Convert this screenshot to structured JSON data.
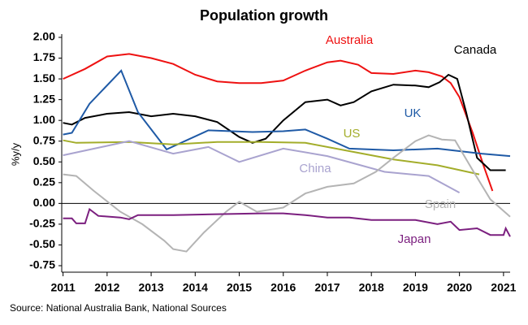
{
  "chart_data": {
    "type": "line",
    "title": "Population growth",
    "y_label": "%y/y",
    "source": "Source: National Australia Bank, National Sources",
    "xlim": [
      2010.97,
      2021.15
    ],
    "xticks": [
      2011,
      2012,
      2013,
      2014,
      2015,
      2016,
      2017,
      2018,
      2019,
      2020,
      2021
    ],
    "ylim": [
      -0.75,
      2.0
    ],
    "yticks": [
      {
        "value": -0.75,
        "label": "-0.75"
      },
      {
        "value": -0.5,
        "label": "-0.50"
      },
      {
        "value": -0.25,
        "label": "-0.25"
      },
      {
        "value": 0,
        "label": "0.00"
      },
      {
        "value": 0.25,
        "label": "0.25"
      },
      {
        "value": 0.5,
        "label": "0.50"
      },
      {
        "value": 0.75,
        "label": "0.75"
      },
      {
        "value": 1.0,
        "label": "1.00"
      },
      {
        "value": 1.25,
        "label": "1.25"
      },
      {
        "value": 1.5,
        "label": "1.50"
      },
      {
        "value": 1.75,
        "label": "1.75"
      },
      {
        "value": 2.0,
        "label": "2.00"
      }
    ],
    "series": [
      {
        "name": "Australia",
        "color": "#ee1111",
        "x": [
          2011,
          2011.5,
          2012,
          2012.5,
          2013,
          2013.5,
          2014,
          2014.5,
          2015,
          2015.5,
          2016,
          2016.5,
          2017,
          2017.3,
          2017.7,
          2018,
          2018.5,
          2019,
          2019.3,
          2019.6,
          2019.8,
          2020,
          2020.3,
          2020.55,
          2020.75
        ],
        "values": [
          1.5,
          1.62,
          1.77,
          1.8,
          1.75,
          1.68,
          1.55,
          1.47,
          1.45,
          1.45,
          1.48,
          1.6,
          1.7,
          1.72,
          1.67,
          1.57,
          1.56,
          1.6,
          1.58,
          1.53,
          1.45,
          1.28,
          0.85,
          0.45,
          0.15
        ]
      },
      {
        "name": "Canada",
        "color": "#000000",
        "x": [
          2011,
          2011.2,
          2011.5,
          2012,
          2012.5,
          2013,
          2013.5,
          2014,
          2014.5,
          2015,
          2015.3,
          2015.6,
          2016,
          2016.5,
          2017,
          2017.3,
          2017.6,
          2018,
          2018.5,
          2019,
          2019.3,
          2019.55,
          2019.75,
          2019.95,
          2020.15,
          2020.4,
          2020.7,
          2021.05
        ],
        "values": [
          0.97,
          0.95,
          1.03,
          1.08,
          1.1,
          1.05,
          1.08,
          1.05,
          0.98,
          0.8,
          0.73,
          0.78,
          1.0,
          1.22,
          1.25,
          1.18,
          1.22,
          1.35,
          1.43,
          1.42,
          1.4,
          1.46,
          1.55,
          1.5,
          1.1,
          0.55,
          0.4,
          0.4
        ]
      },
      {
        "name": "UK",
        "color": "#1f5aa6",
        "x": [
          2011,
          2011.2,
          2011.6,
          2012.32,
          2012.7,
          2013.35,
          2014.3,
          2015.3,
          2016,
          2016.5,
          2017,
          2017.5,
          2018.5,
          2019.5,
          2020.5,
          2021.15
        ],
        "values": [
          0.83,
          0.85,
          1.2,
          1.6,
          1.1,
          0.65,
          0.88,
          0.86,
          0.87,
          0.89,
          0.78,
          0.66,
          0.64,
          0.66,
          0.6,
          0.57
        ]
      },
      {
        "name": "US",
        "color": "#a3ad2a",
        "x": [
          2011,
          2011.3,
          2012.5,
          2013.5,
          2014.5,
          2015.5,
          2016.5,
          2017.5,
          2018.5,
          2019.5,
          2020.45
        ],
        "values": [
          0.76,
          0.73,
          0.74,
          0.71,
          0.74,
          0.74,
          0.73,
          0.63,
          0.53,
          0.46,
          0.35
        ]
      },
      {
        "name": "China",
        "color": "#a9a3cf",
        "x": [
          2011,
          2012.5,
          2013.5,
          2014.3,
          2015,
          2016,
          2017,
          2018.3,
          2019.3,
          2020
        ],
        "values": [
          0.58,
          0.75,
          0.6,
          0.68,
          0.5,
          0.66,
          0.57,
          0.38,
          0.33,
          0.13
        ]
      },
      {
        "name": "Spain",
        "color": "#b4b4b4",
        "x": [
          2011,
          2011.3,
          2011.7,
          2012.3,
          2012.8,
          2013.3,
          2013.5,
          2013.8,
          2014.2,
          2014.7,
          2015,
          2015.4,
          2016,
          2016.5,
          2017,
          2017.6,
          2018.1,
          2018.5,
          2019,
          2019.3,
          2019.6,
          2019.9,
          2020.3,
          2020.7,
          2021.15
        ],
        "values": [
          0.35,
          0.33,
          0.15,
          -0.1,
          -0.25,
          -0.45,
          -0.55,
          -0.58,
          -0.35,
          -0.1,
          0.02,
          -0.1,
          -0.05,
          0.12,
          0.2,
          0.24,
          0.38,
          0.55,
          0.75,
          0.82,
          0.77,
          0.76,
          0.4,
          0.05,
          -0.16
        ]
      },
      {
        "name": "Japan",
        "color": "#7b1f7f",
        "x": [
          2011,
          2011.2,
          2011.3,
          2011.5,
          2011.6,
          2011.8,
          2012.3,
          2012.5,
          2012.7,
          2013.5,
          2014.5,
          2015.5,
          2016,
          2016.5,
          2017,
          2017.5,
          2018,
          2019,
          2019.5,
          2019.8,
          2020,
          2020.4,
          2020.7,
          2021,
          2021.05,
          2021.15
        ],
        "values": [
          -0.18,
          -0.18,
          -0.24,
          -0.24,
          -0.07,
          -0.15,
          -0.17,
          -0.19,
          -0.14,
          -0.14,
          -0.13,
          -0.12,
          -0.12,
          -0.14,
          -0.17,
          -0.17,
          -0.2,
          -0.2,
          -0.25,
          -0.22,
          -0.32,
          -0.3,
          -0.38,
          -0.38,
          -0.3,
          -0.4
        ]
      }
    ]
  }
}
